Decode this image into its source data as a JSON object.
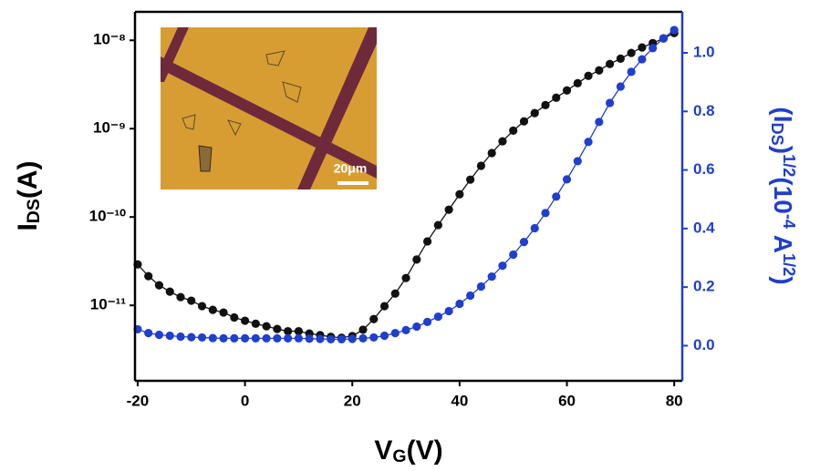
{
  "chart_data": {
    "type": "line",
    "xlabel": [
      "V",
      "G",
      "(V)"
    ],
    "ylabel": [
      "I",
      "DS",
      "(A)"
    ],
    "y2label": [
      "(I",
      "DS",
      ")",
      "1/2",
      "(10",
      "-4",
      " A",
      "1/2",
      ")"
    ],
    "annotations": [
      "20μm"
    ],
    "x": [
      -20,
      -18,
      -16,
      -14,
      -12,
      -10,
      -8,
      -6,
      -4,
      -2,
      0,
      2,
      4,
      6,
      8,
      10,
      12,
      14,
      16,
      18,
      20,
      22,
      24,
      26,
      28,
      30,
      32,
      34,
      36,
      38,
      40,
      42,
      44,
      46,
      48,
      50,
      52,
      54,
      56,
      58,
      60,
      62,
      64,
      66,
      68,
      70,
      72,
      74,
      76,
      78,
      80
    ],
    "xlim": [
      -20.5,
      81.5
    ],
    "xticks": [
      -20,
      0,
      20,
      40,
      60,
      80
    ],
    "yscale": "log",
    "ylim": [
      1.4e-12,
      2.1e-08
    ],
    "yticks": [
      {
        "value": 1e-11,
        "label": "10⁻¹¹"
      },
      {
        "value": 1e-10,
        "label": "10⁻¹⁰"
      },
      {
        "value": 1e-09,
        "label": "10⁻⁹"
      },
      {
        "value": 1e-08,
        "label": "10⁻⁸"
      }
    ],
    "y2lim": [
      -0.12,
      1.14
    ],
    "y2ticks": [
      {
        "value": 0,
        "label": "0.0"
      },
      0.2,
      0.4,
      0.6,
      0.8,
      {
        "value": 1,
        "label": "1.0"
      }
    ],
    "y2color": "#1f3fcc",
    "series": [
      {
        "color": "#111111",
        "values": [
          2.91e-11,
          2.14e-11,
          1.69e-11,
          1.43e-11,
          1.24e-11,
          1.13e-11,
          9.8e-12,
          8.9e-12,
          8.3e-12,
          7.3e-12,
          6.7e-12,
          6.2e-12,
          5.8e-12,
          5.4e-12,
          5.1e-12,
          5.1e-12,
          4.8e-12,
          4.6e-12,
          4.4e-12,
          4.3e-12,
          4.5e-12,
          5.3e-12,
          7e-12,
          9.8e-12,
          1.36e-11,
          2.04e-11,
          3.3e-11,
          5.3e-11,
          8.1e-11,
          1.21e-10,
          1.81e-10,
          2.65e-10,
          3.8e-10,
          5.3e-10,
          7.2e-10,
          9.5e-10,
          1.21e-09,
          1.5e-09,
          1.85e-09,
          2.24e-09,
          2.71e-09,
          3.27e-09,
          3.96e-09,
          4.57e-09,
          5.4e-09,
          6.2e-09,
          7.2e-09,
          8.3e-09,
          9.3e-09,
          1.05e-08,
          1.21e-08
        ]
      },
      {
        "color": "#1f3fcc",
        "axis": "y2",
        "values": [
          0.056,
          0.043,
          0.037,
          0.034,
          0.031,
          0.029,
          0.028,
          0.026,
          0.025,
          0.025,
          0.025,
          0.025,
          0.025,
          0.025,
          0.025,
          0.025,
          0.024,
          0.023,
          0.022,
          0.022,
          0.023,
          0.025,
          0.028,
          0.034,
          0.043,
          0.053,
          0.065,
          0.081,
          0.099,
          0.118,
          0.143,
          0.171,
          0.202,
          0.236,
          0.273,
          0.311,
          0.354,
          0.401,
          0.453,
          0.509,
          0.568,
          0.63,
          0.696,
          0.764,
          0.829,
          0.885,
          0.935,
          0.978,
          1.016,
          1.05,
          1.078
        ]
      }
    ]
  }
}
